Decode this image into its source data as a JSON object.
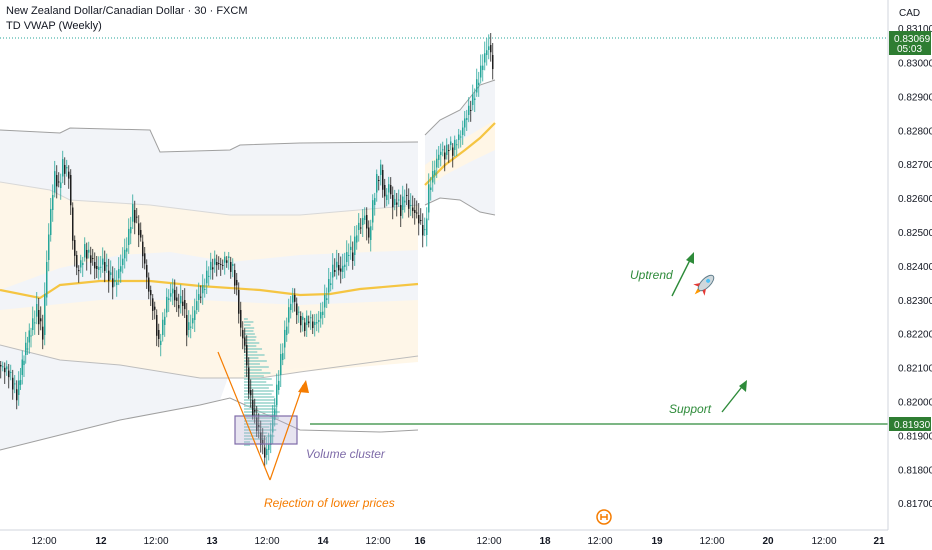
{
  "header": {
    "title": "New Zealand Dollar/Canadian Dollar · 30 · FXCM",
    "indicator": "TD VWAP (Weekly)",
    "currency": "CAD"
  },
  "colors": {
    "up": "#26a69a",
    "down": "#1e1e1e",
    "vwap": "#f5c542",
    "band_fill": "#f2f4f8",
    "inner_fill": "#fff8ec",
    "band_line": "#9e9e9e",
    "green": "#2e8b3a",
    "orange": "#f57c00",
    "purple": "#7e6ba8",
    "price_tag": "#2e7d32"
  },
  "chart_data": {
    "type": "candlestick",
    "y_axis": {
      "min": 0.8165,
      "max": 0.832,
      "ticks": [
        "0.83000",
        "0.82900",
        "0.82800",
        "0.82700",
        "0.82600",
        "0.82500",
        "0.82400",
        "0.82300",
        "0.82200",
        "0.82100",
        "0.82000",
        "0.81900",
        "0.81800",
        "0.81700"
      ],
      "top_partial": "0.83100"
    },
    "x_axis": {
      "labels": [
        "12:00",
        "12",
        "12:00",
        "13",
        "12:00",
        "14",
        "12:00",
        "16",
        "12:00",
        "18",
        "12:00",
        "19",
        "12:00",
        "20",
        "12:00",
        "21"
      ]
    },
    "current_price": {
      "value": "0.83069",
      "countdown": "05:03"
    },
    "support_price": "0.81930",
    "vwap": {
      "start": 0.8232,
      "mid": 0.8235,
      "end": 0.8236,
      "second_start": 0.8264,
      "second_end": 0.8282
    }
  },
  "annotations": {
    "uptrend": "Uptrend",
    "support": "Support",
    "volume_cluster": "Volume cluster",
    "rejection": "Rejection of lower prices"
  }
}
